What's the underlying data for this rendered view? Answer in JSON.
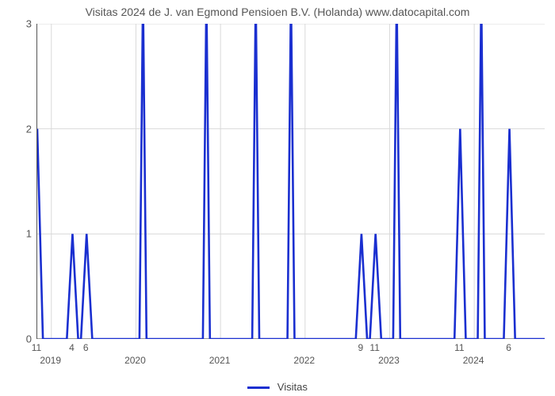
{
  "chart": {
    "type": "line",
    "title": "Visitas 2024 de J. van Egmond Pensioen B.V. (Holanda) www.datocapital.com",
    "title_fontsize": 14,
    "title_color": "#555555",
    "background_color": "#ffffff",
    "plot_border_color": "#555555",
    "grid_color": "#d9d9d9",
    "grid_width": 1,
    "line_color": "#1a2fd0",
    "line_width": 2.6,
    "ylim": [
      0,
      3
    ],
    "ytick_step": 1,
    "ytick_labels": [
      "0",
      "1",
      "2",
      "3"
    ],
    "ytick_fontsize": 13,
    "xrange_months": 72,
    "x_month_ticks": [
      {
        "x": 0,
        "label": "11"
      },
      {
        "x": 5,
        "label": "4"
      },
      {
        "x": 7,
        "label": "6"
      },
      {
        "x": 46,
        "label": "9"
      },
      {
        "x": 48,
        "label": "11"
      },
      {
        "x": 60,
        "label": "11"
      },
      {
        "x": 67,
        "label": "6"
      }
    ],
    "x_year_ticks": [
      {
        "x": 2,
        "label": "2019"
      },
      {
        "x": 14,
        "label": "2020"
      },
      {
        "x": 26,
        "label": "2021"
      },
      {
        "x": 38,
        "label": "2022"
      },
      {
        "x": 50,
        "label": "2023"
      },
      {
        "x": 62,
        "label": "2024"
      }
    ],
    "xtick_fontsize": 12,
    "series": [
      {
        "name": "Visitas",
        "color": "#1a2fd0",
        "points": [
          {
            "x": 0,
            "y": 2
          },
          {
            "x": 0.8,
            "y": 0
          },
          {
            "x": 4.2,
            "y": 0
          },
          {
            "x": 5,
            "y": 1
          },
          {
            "x": 5.8,
            "y": 0
          },
          {
            "x": 6.2,
            "y": 0
          },
          {
            "x": 7,
            "y": 1
          },
          {
            "x": 7.8,
            "y": 0
          },
          {
            "x": 14.5,
            "y": 0
          },
          {
            "x": 15,
            "y": 3.3
          },
          {
            "x": 15.5,
            "y": 0
          },
          {
            "x": 23.5,
            "y": 0
          },
          {
            "x": 24,
            "y": 3.3
          },
          {
            "x": 24.5,
            "y": 0
          },
          {
            "x": 30.5,
            "y": 0
          },
          {
            "x": 31,
            "y": 3.3
          },
          {
            "x": 31.5,
            "y": 0
          },
          {
            "x": 35.5,
            "y": 0
          },
          {
            "x": 36,
            "y": 3.3
          },
          {
            "x": 36.5,
            "y": 0
          },
          {
            "x": 45.2,
            "y": 0
          },
          {
            "x": 46,
            "y": 1
          },
          {
            "x": 46.8,
            "y": 0
          },
          {
            "x": 47.2,
            "y": 0
          },
          {
            "x": 48,
            "y": 1
          },
          {
            "x": 48.8,
            "y": 0
          },
          {
            "x": 50.5,
            "y": 0
          },
          {
            "x": 51,
            "y": 3.3
          },
          {
            "x": 51.5,
            "y": 0
          },
          {
            "x": 59.2,
            "y": 0
          },
          {
            "x": 60,
            "y": 2
          },
          {
            "x": 60.8,
            "y": 0
          },
          {
            "x": 62.5,
            "y": 0
          },
          {
            "x": 63,
            "y": 3.3
          },
          {
            "x": 63.5,
            "y": 0
          },
          {
            "x": 66.2,
            "y": 0
          },
          {
            "x": 67,
            "y": 2
          },
          {
            "x": 67.8,
            "y": 0
          },
          {
            "x": 72,
            "y": 0
          }
        ]
      }
    ],
    "legend": {
      "label": "Visitas",
      "fontsize": 13,
      "swatch_color": "#1a2fd0"
    }
  }
}
